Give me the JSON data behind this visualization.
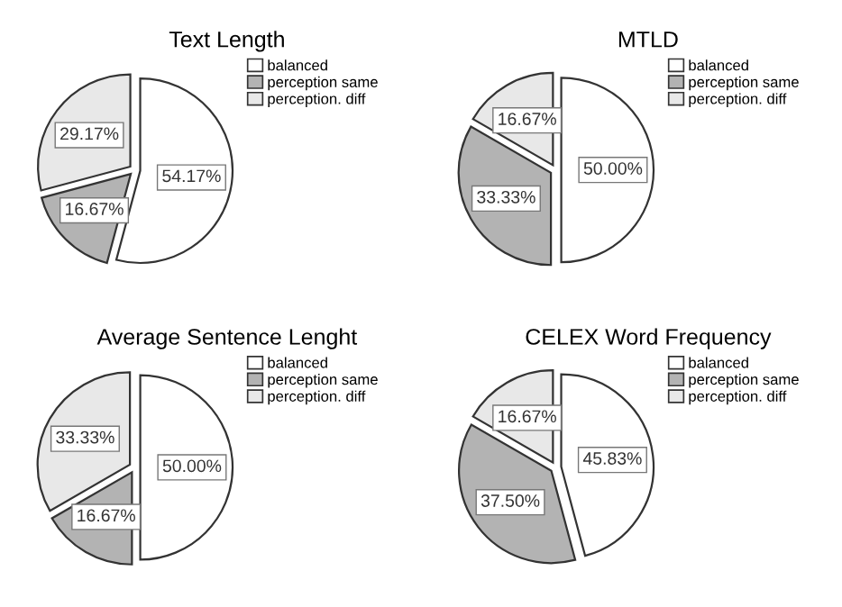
{
  "chart_data": [
    {
      "type": "pie",
      "title": "Text Length",
      "categories": [
        "balanced",
        "perception same",
        "perception. diff"
      ],
      "values": [
        54.17,
        16.67,
        29.17
      ],
      "colors": [
        "#ffffff",
        "#b3b3b3",
        "#e8e8e8"
      ],
      "value_labels": [
        "54.17%",
        "16.67%",
        "29.17%"
      ],
      "legend": "top right"
    },
    {
      "type": "pie",
      "title": "MTLD",
      "categories": [
        "balanced",
        "perception same",
        "perception. diff"
      ],
      "values": [
        50.0,
        33.33,
        16.67
      ],
      "colors": [
        "#ffffff",
        "#b3b3b3",
        "#e8e8e8"
      ],
      "value_labels": [
        "50.00%",
        "33.33%",
        "16.67%"
      ],
      "legend": "top right"
    },
    {
      "type": "pie",
      "title": "Average Sentence Lenght",
      "categories": [
        "balanced",
        "perception same",
        "perception. diff"
      ],
      "values": [
        50.0,
        16.67,
        33.33
      ],
      "colors": [
        "#ffffff",
        "#b3b3b3",
        "#e8e8e8"
      ],
      "value_labels": [
        "50.00%",
        "16.67%",
        "33.33%"
      ],
      "legend": "top right"
    },
    {
      "type": "pie",
      "title": "CELEX Word Frequency",
      "categories": [
        "balanced",
        "perception same",
        "perception. diff"
      ],
      "values": [
        45.83,
        37.5,
        16.67
      ],
      "colors": [
        "#ffffff",
        "#b3b3b3",
        "#e8e8e8"
      ],
      "value_labels": [
        "45.83%",
        "37.50%",
        "16.67%"
      ],
      "legend": "top right"
    }
  ]
}
